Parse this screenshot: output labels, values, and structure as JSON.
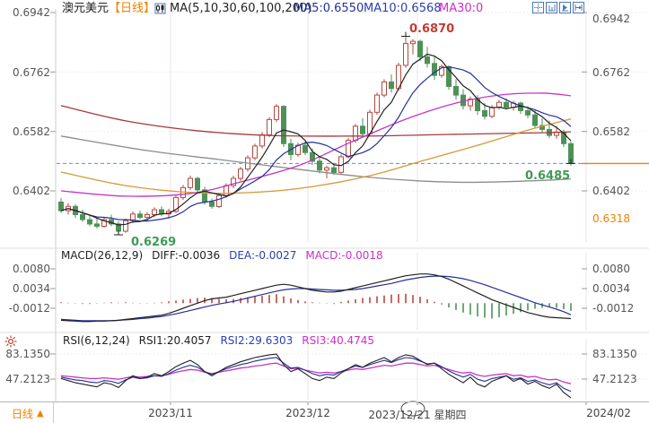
{
  "header": {
    "symbol": "澳元美元",
    "period_tag": "【日线】",
    "ma_group": "MA(5,10,30,60,100,200)",
    "ma5_label": "MA5:0.6550",
    "ma10_label": "MA10:0.6568",
    "ma30_label": "MA30:0"
  },
  "toolbar": {
    "icons": [
      "crosshair-icon",
      "indicator-window-icon",
      "play-icon",
      "next-page-icon"
    ]
  },
  "main_axis": {
    "ticks": [
      "0.6942",
      "0.6762",
      "0.6582",
      "0.6402"
    ],
    "right_extra_tick": "0.6318"
  },
  "annotations": {
    "high_label": "0.6870",
    "low_label": "0.6269",
    "last_label": "0.6485"
  },
  "macd_panel": {
    "title": "MACD(26,12,9)",
    "diff_label": "DIFF:-0.0036",
    "dea_label": "DEA:-0.0027",
    "macd_label": "MACD:-0.0018",
    "ticks": [
      "0.0080",
      "0.0034",
      "-0.0012"
    ]
  },
  "rsi_panel": {
    "title": "RSI(6,12,24)",
    "rsi1_label": "RSI1:20.4057",
    "rsi2_label": "RSI2:29.6303",
    "rsi3_label": "RSI3:40.4745",
    "ticks": [
      "83.1350",
      "47.2123"
    ]
  },
  "bottom": {
    "period": "日线",
    "dates": [
      "2023/11",
      "2023/12",
      "2023/12/21 星期四",
      "2024/02"
    ]
  },
  "colors": {
    "up": "#b5493f",
    "down": "#4e9158",
    "ma5": "#222222",
    "ma10": "#23309b",
    "ma30": "#c436c4",
    "ma60": "#d49a33",
    "ma100": "#8c8c8c",
    "ma200": "#a43b3b",
    "last_line": "#4a9ad4",
    "accent_orange": "#f08200",
    "label_red": "#c43b35",
    "label_green": "#3f9a55",
    "grid": "#ece2ec",
    "hgrid": "#ededf3",
    "axis_line": "#cccccc"
  },
  "chart_data": {
    "type": "candlestick",
    "title": "澳元美元 日线 (AUD/USD daily)",
    "panels": [
      "price+MA(5,10,30,60,100,200)",
      "MACD(26,12,9)",
      "RSI(6,12,24)"
    ],
    "price_axis_ticks": [
      0.6942,
      0.6762,
      0.6582,
      0.6402
    ],
    "price_low_tick": 0.6318,
    "high_price": 0.687,
    "high_index": 48,
    "low_price": 0.6269,
    "low_index": 8,
    "last_price": 0.6485,
    "last_index": 71,
    "x_month_labels": [
      "2023/11",
      "2023/12",
      "2023/12/21",
      "2024/02"
    ],
    "candles": [
      [
        0.6368,
        0.638,
        0.6335,
        0.6342
      ],
      [
        0.6342,
        0.6365,
        0.633,
        0.6355
      ],
      [
        0.6355,
        0.6362,
        0.632,
        0.633
      ],
      [
        0.633,
        0.6345,
        0.6308,
        0.6315
      ],
      [
        0.6315,
        0.633,
        0.6295,
        0.6302
      ],
      [
        0.6302,
        0.6318,
        0.6288,
        0.6295
      ],
      [
        0.6295,
        0.6322,
        0.629,
        0.6315
      ],
      [
        0.6315,
        0.633,
        0.6295,
        0.6302
      ],
      [
        0.6302,
        0.631,
        0.6269,
        0.628
      ],
      [
        0.628,
        0.6318,
        0.6275,
        0.6312
      ],
      [
        0.6312,
        0.634,
        0.6305,
        0.6332
      ],
      [
        0.6332,
        0.6342,
        0.6315,
        0.6322
      ],
      [
        0.6322,
        0.6338,
        0.631,
        0.633
      ],
      [
        0.633,
        0.6352,
        0.6322,
        0.6345
      ],
      [
        0.6345,
        0.6355,
        0.6325,
        0.6332
      ],
      [
        0.6332,
        0.6348,
        0.6318,
        0.634
      ],
      [
        0.634,
        0.6388,
        0.6335,
        0.6382
      ],
      [
        0.6382,
        0.642,
        0.6375,
        0.6412
      ],
      [
        0.6412,
        0.6448,
        0.6405,
        0.644
      ],
      [
        0.644,
        0.6445,
        0.6398,
        0.6405
      ],
      [
        0.6405,
        0.6415,
        0.636,
        0.6368
      ],
      [
        0.6368,
        0.6378,
        0.6348,
        0.6355
      ],
      [
        0.6355,
        0.6395,
        0.635,
        0.6388
      ],
      [
        0.6388,
        0.6425,
        0.6382,
        0.6418
      ],
      [
        0.6418,
        0.6448,
        0.641,
        0.644
      ],
      [
        0.644,
        0.6475,
        0.6432,
        0.6468
      ],
      [
        0.6468,
        0.651,
        0.646,
        0.6502
      ],
      [
        0.6502,
        0.6545,
        0.6495,
        0.6538
      ],
      [
        0.6538,
        0.658,
        0.653,
        0.6572
      ],
      [
        0.6572,
        0.6625,
        0.6565,
        0.6618
      ],
      [
        0.6618,
        0.6665,
        0.661,
        0.6658
      ],
      [
        0.6658,
        0.6662,
        0.6535,
        0.6545
      ],
      [
        0.6545,
        0.656,
        0.6495,
        0.6512
      ],
      [
        0.6512,
        0.6548,
        0.6505,
        0.654
      ],
      [
        0.654,
        0.6552,
        0.651,
        0.6518
      ],
      [
        0.6518,
        0.653,
        0.648,
        0.6492
      ],
      [
        0.6492,
        0.6505,
        0.6455,
        0.6465
      ],
      [
        0.6465,
        0.6478,
        0.644,
        0.6472
      ],
      [
        0.6472,
        0.6485,
        0.645,
        0.6458
      ],
      [
        0.6458,
        0.6512,
        0.6452,
        0.6505
      ],
      [
        0.6505,
        0.6562,
        0.65,
        0.6555
      ],
      [
        0.6555,
        0.6605,
        0.6548,
        0.6598
      ],
      [
        0.6598,
        0.6622,
        0.6565,
        0.6575
      ],
      [
        0.6575,
        0.6648,
        0.657,
        0.664
      ],
      [
        0.664,
        0.67,
        0.6632,
        0.6692
      ],
      [
        0.6692,
        0.674,
        0.6685,
        0.6732
      ],
      [
        0.6732,
        0.6755,
        0.67,
        0.6712
      ],
      [
        0.6712,
        0.679,
        0.6705,
        0.6782
      ],
      [
        0.6782,
        0.687,
        0.6775,
        0.6848
      ],
      [
        0.6848,
        0.6862,
        0.6815,
        0.6855
      ],
      [
        0.6855,
        0.686,
        0.6795,
        0.6808
      ],
      [
        0.6808,
        0.6838,
        0.6775,
        0.6788
      ],
      [
        0.6788,
        0.6808,
        0.6738,
        0.6752
      ],
      [
        0.6752,
        0.6785,
        0.6745,
        0.6778
      ],
      [
        0.6778,
        0.6782,
        0.6708,
        0.6718
      ],
      [
        0.6718,
        0.674,
        0.6678,
        0.6692
      ],
      [
        0.6692,
        0.671,
        0.6648,
        0.666
      ],
      [
        0.666,
        0.6688,
        0.6645,
        0.668
      ],
      [
        0.668,
        0.6692,
        0.6632,
        0.6645
      ],
      [
        0.6645,
        0.6668,
        0.6618,
        0.6628
      ],
      [
        0.6628,
        0.6662,
        0.6622,
        0.6655
      ],
      [
        0.6655,
        0.6678,
        0.6648,
        0.667
      ],
      [
        0.667,
        0.6682,
        0.6648,
        0.6655
      ],
      [
        0.6655,
        0.6675,
        0.6645,
        0.6668
      ],
      [
        0.6668,
        0.6672,
        0.6635,
        0.6645
      ],
      [
        0.6645,
        0.6658,
        0.6622,
        0.6632
      ],
      [
        0.6632,
        0.6648,
        0.6592,
        0.66
      ],
      [
        0.66,
        0.6622,
        0.658,
        0.6588
      ],
      [
        0.6588,
        0.6615,
        0.6562,
        0.657
      ],
      [
        0.657,
        0.6598,
        0.656,
        0.658
      ],
      [
        0.658,
        0.6588,
        0.6535,
        0.6545
      ],
      [
        0.6545,
        0.6552,
        0.6478,
        0.6485
      ]
    ],
    "ma_overlays": {
      "ma30": [
        [
          0,
          0.6402
        ],
        [
          9,
          0.6386
        ],
        [
          18,
          0.6394
        ],
        [
          25,
          0.6429
        ],
        [
          33,
          0.6478
        ],
        [
          40,
          0.6546
        ],
        [
          48,
          0.6619
        ],
        [
          55,
          0.6668
        ],
        [
          61,
          0.6692
        ],
        [
          67,
          0.6698
        ],
        [
          71,
          0.669
        ]
      ],
      "ma60": [
        [
          0,
          0.6459
        ],
        [
          9,
          0.6418
        ],
        [
          19,
          0.6396
        ],
        [
          28,
          0.6399
        ],
        [
          35,
          0.6415
        ],
        [
          43,
          0.6448
        ],
        [
          50,
          0.6491
        ],
        [
          58,
          0.654
        ],
        [
          65,
          0.6586
        ],
        [
          71,
          0.662
        ]
      ],
      "ma100": [
        [
          0,
          0.6568
        ],
        [
          12,
          0.6524
        ],
        [
          22,
          0.6497
        ],
        [
          32,
          0.647
        ],
        [
          42,
          0.6445
        ],
        [
          50,
          0.6432
        ],
        [
          57,
          0.6428
        ],
        [
          65,
          0.6432
        ],
        [
          71,
          0.6438
        ]
      ],
      "ma200": [
        [
          0,
          0.666
        ],
        [
          9,
          0.6614
        ],
        [
          19,
          0.6584
        ],
        [
          29,
          0.657
        ],
        [
          42,
          0.6568
        ],
        [
          54,
          0.6573
        ],
        [
          67,
          0.6578
        ],
        [
          71,
          0.6581
        ]
      ]
    },
    "macd": {
      "scale": 0.0001,
      "axis_ticks": [
        0.008,
        0.0034,
        -0.0012
      ],
      "hist": [
        2,
        1,
        -1,
        -2,
        -2,
        -1,
        1,
        2,
        1,
        2,
        1,
        -1,
        -1,
        1,
        2,
        4,
        6,
        8,
        10,
        12,
        13,
        12,
        10,
        9,
        10,
        12,
        14,
        16,
        17,
        19,
        21,
        16,
        11,
        7,
        4,
        2,
        1,
        -1,
        -2,
        3,
        6,
        9,
        12,
        14,
        16,
        18,
        20,
        21,
        22,
        19,
        15,
        9,
        3,
        -3,
        -10,
        -16,
        -22,
        -27,
        -31,
        -34,
        -36,
        -33,
        -29,
        -25,
        -21,
        -17,
        -13,
        -11,
        -9,
        -11,
        -14,
        -18
      ],
      "diff": [
        -40,
        -41,
        -42,
        -43,
        -43,
        -42,
        -42,
        -41,
        -40,
        -38,
        -36,
        -34,
        -32,
        -30,
        -28,
        -24,
        -18,
        -12,
        -6,
        0,
        6,
        10,
        12,
        14,
        18,
        22,
        26,
        30,
        34,
        38,
        42,
        44,
        42,
        38,
        34,
        30,
        28,
        26,
        26,
        28,
        32,
        36,
        40,
        44,
        48,
        52,
        56,
        60,
        64,
        66,
        68,
        68,
        66,
        62,
        56,
        48,
        40,
        32,
        24,
        16,
        8,
        2,
        -4,
        -10,
        -16,
        -22,
        -26,
        -30,
        -33,
        -34,
        -35,
        -36
      ],
      "dea": [
        -38,
        -39,
        -40,
        -41,
        -41,
        -41,
        -41,
        -41,
        -40,
        -39,
        -38,
        -36,
        -35,
        -33,
        -31,
        -28,
        -25,
        -21,
        -17,
        -13,
        -9,
        -5,
        -2,
        1,
        4,
        8,
        12,
        16,
        20,
        24,
        28,
        31,
        33,
        34,
        34,
        33,
        32,
        31,
        30,
        30,
        31,
        32,
        34,
        37,
        40,
        43,
        46,
        50,
        54,
        57,
        60,
        62,
        63,
        63,
        62,
        60,
        57,
        53,
        48,
        43,
        37,
        31,
        25,
        19,
        13,
        7,
        1,
        -4,
        -9,
        -14,
        -20,
        -27
      ]
    },
    "rsi": {
      "axis_ticks": [
        83.135,
        47.2123
      ],
      "rsi1": [
        48,
        45,
        42,
        40,
        38,
        36,
        42,
        40,
        35,
        45,
        52,
        48,
        50,
        55,
        52,
        58,
        65,
        70,
        74,
        68,
        58,
        52,
        58,
        64,
        68,
        72,
        75,
        78,
        80,
        82,
        83,
        68,
        58,
        62,
        55,
        48,
        45,
        50,
        48,
        56,
        62,
        68,
        64,
        70,
        74,
        78,
        72,
        78,
        82,
        80,
        74,
        68,
        70,
        62,
        54,
        48,
        42,
        50,
        40,
        36,
        44,
        48,
        52,
        44,
        48,
        40,
        44,
        38,
        34,
        40,
        28,
        20.4
      ],
      "rsi2": [
        50,
        48,
        46,
        45,
        43,
        42,
        45,
        44,
        41,
        46,
        50,
        48,
        49,
        52,
        51,
        55,
        60,
        64,
        67,
        64,
        58,
        54,
        58,
        62,
        65,
        68,
        70,
        73,
        75,
        77,
        78,
        70,
        63,
        64,
        60,
        55,
        52,
        54,
        53,
        58,
        62,
        66,
        64,
        68,
        71,
        74,
        71,
        75,
        78,
        77,
        73,
        69,
        70,
        65,
        59,
        54,
        50,
        54,
        47,
        44,
        48,
        50,
        52,
        47,
        49,
        44,
        46,
        42,
        39,
        42,
        34,
        29.6
      ],
      "rsi3": [
        52,
        51,
        50,
        49,
        48,
        48,
        49,
        48,
        47,
        49,
        51,
        50,
        51,
        52,
        52,
        54,
        57,
        59,
        61,
        60,
        57,
        55,
        57,
        59,
        61,
        63,
        64,
        66,
        67,
        69,
        70,
        66,
        62,
        63,
        60,
        58,
        56,
        57,
        56,
        58,
        60,
        62,
        61,
        63,
        65,
        67,
        66,
        68,
        70,
        70,
        68,
        66,
        67,
        64,
        61,
        58,
        56,
        57,
        53,
        51,
        53,
        54,
        55,
        52,
        53,
        50,
        51,
        48,
        46,
        47,
        43,
        40.5
      ]
    }
  }
}
